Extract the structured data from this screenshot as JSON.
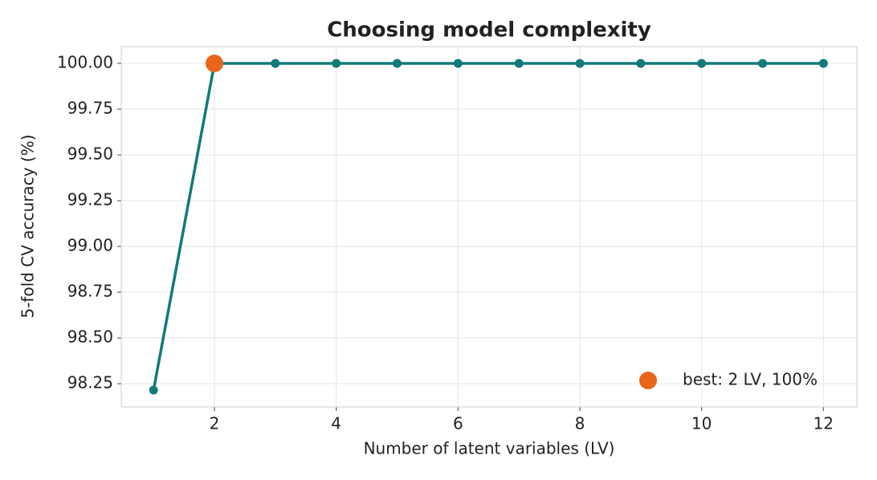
{
  "chart_data": {
    "type": "line",
    "title": "Choosing model complexity",
    "xlabel": "Number of latent variables (LV)",
    "ylabel": "5-fold CV accuracy (%)",
    "x": [
      1,
      2,
      3,
      4,
      5,
      6,
      7,
      8,
      9,
      10,
      11,
      12
    ],
    "values": [
      98.215,
      100,
      100,
      100,
      100,
      100,
      100,
      100,
      100,
      100,
      100,
      100
    ],
    "color": "#127a78",
    "best": {
      "x": 2,
      "value": 100,
      "label": "best: 2 LV, 100%",
      "color": "#e8651a"
    },
    "xlim": [
      0.47,
      12.55
    ],
    "ylim": [
      98.123,
      100.092
    ],
    "xticks": [
      2,
      4,
      6,
      8,
      10,
      12
    ],
    "yticks": [
      {
        "value": 98.25,
        "label": "98.25"
      },
      {
        "value": 98.5,
        "label": "98.50"
      },
      {
        "value": 98.75,
        "label": "98.75"
      },
      {
        "value": 99,
        "label": "99.00"
      },
      {
        "value": 99.25,
        "label": "99.25"
      },
      {
        "value": 99.5,
        "label": "99.50"
      },
      {
        "value": 99.75,
        "label": "99.75"
      },
      {
        "value": 100,
        "label": "100.00"
      }
    ],
    "grid": true,
    "legend": "lower right"
  }
}
